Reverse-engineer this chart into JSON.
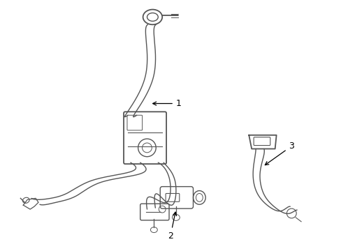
{
  "background_color": "#ffffff",
  "line_color": "#555555",
  "label_color": "#000000",
  "label_fontsize": 9,
  "fig_width": 4.89,
  "fig_height": 3.6,
  "dpi": 100
}
